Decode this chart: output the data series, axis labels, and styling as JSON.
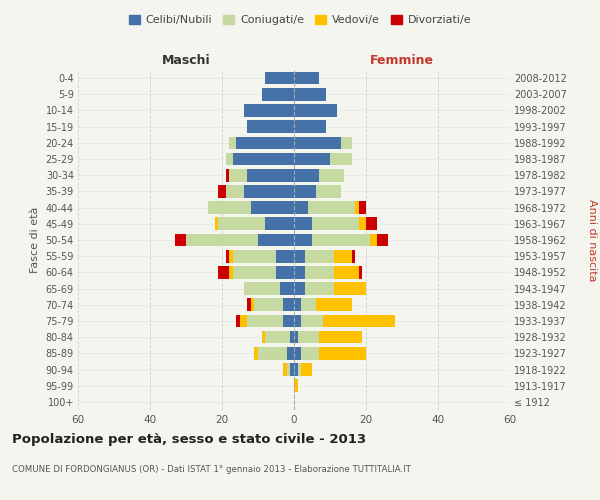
{
  "age_groups": [
    "100+",
    "95-99",
    "90-94",
    "85-89",
    "80-84",
    "75-79",
    "70-74",
    "65-69",
    "60-64",
    "55-59",
    "50-54",
    "45-49",
    "40-44",
    "35-39",
    "30-34",
    "25-29",
    "20-24",
    "15-19",
    "10-14",
    "5-9",
    "0-4"
  ],
  "birth_years": [
    "≤ 1912",
    "1913-1917",
    "1918-1922",
    "1923-1927",
    "1928-1932",
    "1933-1937",
    "1938-1942",
    "1943-1947",
    "1948-1952",
    "1953-1957",
    "1958-1962",
    "1963-1967",
    "1968-1972",
    "1973-1977",
    "1978-1982",
    "1983-1987",
    "1988-1992",
    "1993-1997",
    "1998-2002",
    "2003-2007",
    "2008-2012"
  ],
  "male": {
    "celibi": [
      0,
      0,
      1,
      2,
      1,
      3,
      3,
      4,
      5,
      5,
      10,
      8,
      12,
      14,
      13,
      17,
      16,
      13,
      14,
      9,
      8
    ],
    "coniugati": [
      0,
      0,
      1,
      8,
      7,
      10,
      8,
      10,
      12,
      12,
      20,
      13,
      12,
      5,
      5,
      2,
      2,
      0,
      0,
      0,
      0
    ],
    "vedovi": [
      0,
      0,
      1,
      1,
      1,
      2,
      1,
      0,
      1,
      1,
      0,
      1,
      0,
      0,
      0,
      0,
      0,
      0,
      0,
      0,
      0
    ],
    "divorziati": [
      0,
      0,
      0,
      0,
      0,
      1,
      1,
      0,
      3,
      1,
      3,
      0,
      0,
      2,
      1,
      0,
      0,
      0,
      0,
      0,
      0
    ]
  },
  "female": {
    "nubili": [
      0,
      0,
      1,
      2,
      1,
      2,
      2,
      3,
      3,
      3,
      5,
      5,
      4,
      6,
      7,
      10,
      13,
      9,
      12,
      9,
      7
    ],
    "coniugate": [
      0,
      0,
      1,
      5,
      6,
      6,
      4,
      8,
      8,
      8,
      16,
      13,
      13,
      7,
      7,
      6,
      3,
      0,
      0,
      0,
      0
    ],
    "vedove": [
      0,
      1,
      3,
      13,
      12,
      20,
      10,
      9,
      7,
      5,
      2,
      2,
      1,
      0,
      0,
      0,
      0,
      0,
      0,
      0,
      0
    ],
    "divorziate": [
      0,
      0,
      0,
      0,
      0,
      0,
      0,
      0,
      1,
      1,
      3,
      3,
      2,
      0,
      0,
      0,
      0,
      0,
      0,
      0,
      0
    ]
  },
  "colors": {
    "celibi": "#4472a8",
    "coniugati": "#c5d9a0",
    "vedovi": "#ffc000",
    "divorziati": "#cc0000"
  },
  "xlim": 60,
  "title": "Popolazione per età, sesso e stato civile - 2013",
  "subtitle": "COMUNE DI FORDONGIANUS (OR) - Dati ISTAT 1° gennaio 2013 - Elaborazione TUTTITALIA.IT",
  "ylabel_left": "Fasce di età",
  "ylabel_right": "Anni di nascita",
  "xlabel_maschi": "Maschi",
  "xlabel_femmine": "Femmine",
  "legend_labels": [
    "Celibi/Nubili",
    "Coniugati/e",
    "Vedovi/e",
    "Divorziati/e"
  ],
  "bg_color": "#f5f5f0",
  "grid_color": "#cccccc"
}
